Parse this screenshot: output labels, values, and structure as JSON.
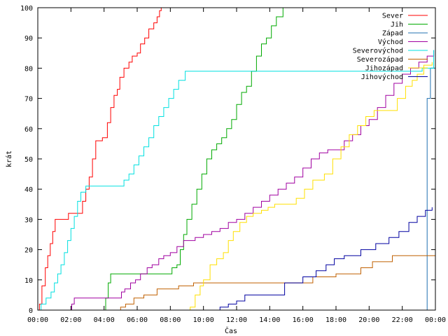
{
  "chart_data": {
    "type": "line",
    "title": "",
    "xlabel": "Čas",
    "ylabel": "krát",
    "xlim": [
      0,
      24
    ],
    "ylim": [
      0,
      100
    ],
    "x_ticks": [
      0,
      2,
      4,
      6,
      8,
      10,
      12,
      14,
      16,
      18,
      20,
      22,
      24
    ],
    "x_tick_labels": [
      "00:00",
      "02:00",
      "04:00",
      "06:00",
      "08:00",
      "10:00",
      "12:00",
      "14:00",
      "16:00",
      "18:00",
      "20:00",
      "22:00",
      "00:00"
    ],
    "y_ticks": [
      0,
      10,
      20,
      30,
      40,
      50,
      60,
      70,
      80,
      90,
      100
    ],
    "y_tick_labels": [
      "0",
      "10",
      "20",
      "30",
      "40",
      "50",
      "60",
      "70",
      "80",
      "90",
      "100"
    ],
    "grid": false,
    "legend_position": "top-right",
    "series": [
      {
        "name": "Sever",
        "color": "#ff0000",
        "points": [
          [
            0.0,
            0
          ],
          [
            0.1,
            2
          ],
          [
            0.25,
            8
          ],
          [
            0.45,
            14
          ],
          [
            0.6,
            18
          ],
          [
            0.75,
            22
          ],
          [
            0.9,
            26
          ],
          [
            1.05,
            30
          ],
          [
            1.7,
            30
          ],
          [
            1.85,
            32
          ],
          [
            2.5,
            32
          ],
          [
            2.7,
            36
          ],
          [
            2.9,
            40
          ],
          [
            3.1,
            44
          ],
          [
            3.3,
            50
          ],
          [
            3.5,
            56
          ],
          [
            3.9,
            57
          ],
          [
            4.0,
            57
          ],
          [
            4.2,
            62
          ],
          [
            4.4,
            67
          ],
          [
            4.6,
            71
          ],
          [
            4.8,
            73
          ],
          [
            4.95,
            77
          ],
          [
            5.2,
            80
          ],
          [
            5.5,
            82
          ],
          [
            5.7,
            84
          ],
          [
            6.0,
            85
          ],
          [
            6.2,
            88
          ],
          [
            6.45,
            90
          ],
          [
            6.7,
            93
          ],
          [
            7.0,
            95
          ],
          [
            7.2,
            97
          ],
          [
            7.35,
            99
          ],
          [
            7.45,
            100
          ]
        ]
      },
      {
        "name": "Jih",
        "color": "#00aa00",
        "points": [
          [
            0.0,
            0
          ],
          [
            4.0,
            0
          ],
          [
            4.1,
            4
          ],
          [
            4.25,
            9
          ],
          [
            4.4,
            12
          ],
          [
            7.9,
            12
          ],
          [
            8.1,
            14
          ],
          [
            8.4,
            15
          ],
          [
            8.6,
            20
          ],
          [
            8.8,
            25
          ],
          [
            9.0,
            30
          ],
          [
            9.3,
            35
          ],
          [
            9.6,
            40
          ],
          [
            9.9,
            45
          ],
          [
            10.2,
            50
          ],
          [
            10.5,
            53
          ],
          [
            10.8,
            55
          ],
          [
            11.1,
            57
          ],
          [
            11.4,
            60
          ],
          [
            11.7,
            63
          ],
          [
            12.0,
            68
          ],
          [
            12.3,
            72
          ],
          [
            12.6,
            74
          ],
          [
            12.9,
            79
          ],
          [
            13.2,
            84
          ],
          [
            13.5,
            88
          ],
          [
            13.8,
            90
          ],
          [
            14.1,
            94
          ],
          [
            14.4,
            97
          ],
          [
            14.8,
            100
          ]
        ]
      },
      {
        "name": "Západ",
        "color": "#2070b0",
        "points": [
          [
            0.0,
            0
          ],
          [
            23.3,
            0
          ],
          [
            23.5,
            70
          ],
          [
            23.7,
            80
          ],
          [
            24.0,
            86
          ]
        ]
      },
      {
        "name": "Východ",
        "color": "#a000a0",
        "points": [
          [
            0.0,
            0
          ],
          [
            1.95,
            0
          ],
          [
            2.05,
            2
          ],
          [
            2.2,
            4
          ],
          [
            4.9,
            4
          ],
          [
            5.05,
            6
          ],
          [
            5.25,
            7
          ],
          [
            5.6,
            9
          ],
          [
            5.9,
            10
          ],
          [
            6.2,
            12
          ],
          [
            6.6,
            14
          ],
          [
            6.9,
            15
          ],
          [
            7.3,
            17
          ],
          [
            7.6,
            18
          ],
          [
            8.0,
            19
          ],
          [
            8.4,
            21
          ],
          [
            8.8,
            23
          ],
          [
            9.5,
            24
          ],
          [
            10.0,
            25
          ],
          [
            10.5,
            26
          ],
          [
            11.0,
            27
          ],
          [
            11.5,
            29
          ],
          [
            12.0,
            30
          ],
          [
            12.5,
            32
          ],
          [
            13.0,
            34
          ],
          [
            13.5,
            36
          ],
          [
            14.0,
            38
          ],
          [
            14.5,
            40
          ],
          [
            15.0,
            42
          ],
          [
            15.5,
            44
          ],
          [
            16.0,
            47
          ],
          [
            16.5,
            50
          ],
          [
            17.0,
            52
          ],
          [
            17.5,
            53
          ],
          [
            18.0,
            53
          ],
          [
            18.5,
            56
          ],
          [
            19.0,
            58
          ],
          [
            19.5,
            61
          ],
          [
            20.0,
            63
          ],
          [
            20.5,
            67
          ],
          [
            21.0,
            71
          ],
          [
            21.5,
            75
          ],
          [
            22.0,
            78
          ],
          [
            22.5,
            80
          ],
          [
            23.0,
            82
          ],
          [
            23.5,
            84
          ],
          [
            23.9,
            86
          ]
        ]
      },
      {
        "name": "Severovýchod",
        "color": "#00e0e0",
        "points": [
          [
            0.0,
            0
          ],
          [
            0.2,
            2
          ],
          [
            0.5,
            4
          ],
          [
            0.8,
            6
          ],
          [
            1.0,
            9
          ],
          [
            1.2,
            12
          ],
          [
            1.4,
            15
          ],
          [
            1.6,
            19
          ],
          [
            1.8,
            23
          ],
          [
            2.0,
            27
          ],
          [
            2.2,
            31
          ],
          [
            2.4,
            36
          ],
          [
            2.6,
            39
          ],
          [
            2.9,
            41
          ],
          [
            5.0,
            41
          ],
          [
            5.2,
            43
          ],
          [
            5.5,
            45
          ],
          [
            5.8,
            48
          ],
          [
            6.1,
            51
          ],
          [
            6.4,
            54
          ],
          [
            6.7,
            57
          ],
          [
            7.0,
            61
          ],
          [
            7.3,
            64
          ],
          [
            7.6,
            67
          ],
          [
            7.9,
            70
          ],
          [
            8.2,
            73
          ],
          [
            8.5,
            76
          ],
          [
            8.9,
            79
          ],
          [
            22.5,
            79
          ],
          [
            23.2,
            80
          ],
          [
            23.9,
            86
          ]
        ]
      },
      {
        "name": "Severozápad",
        "color": "#c06000",
        "points": [
          [
            0.0,
            0
          ],
          [
            4.9,
            0
          ],
          [
            5.0,
            1
          ],
          [
            5.3,
            2
          ],
          [
            5.8,
            4
          ],
          [
            6.4,
            5
          ],
          [
            7.2,
            7
          ],
          [
            8.5,
            8
          ],
          [
            9.4,
            9
          ],
          [
            12.0,
            9
          ],
          [
            14.0,
            9
          ],
          [
            16.0,
            9
          ],
          [
            16.6,
            11
          ],
          [
            18.0,
            12
          ],
          [
            19.5,
            14
          ],
          [
            20.2,
            16
          ],
          [
            21.4,
            18
          ],
          [
            24.0,
            18
          ]
        ]
      },
      {
        "name": "Jihozápad",
        "color": "#ffe000",
        "points": [
          [
            0.0,
            0
          ],
          [
            9.0,
            0
          ],
          [
            9.2,
            1
          ],
          [
            9.5,
            5
          ],
          [
            9.8,
            8
          ],
          [
            10.0,
            10
          ],
          [
            10.4,
            15
          ],
          [
            10.8,
            17
          ],
          [
            11.2,
            19
          ],
          [
            11.5,
            23
          ],
          [
            11.8,
            26
          ],
          [
            12.2,
            29
          ],
          [
            12.6,
            31
          ],
          [
            13.0,
            32
          ],
          [
            13.5,
            33
          ],
          [
            13.9,
            34
          ],
          [
            14.3,
            35
          ],
          [
            15.0,
            35
          ],
          [
            15.6,
            37
          ],
          [
            16.1,
            40
          ],
          [
            16.6,
            43
          ],
          [
            17.3,
            45
          ],
          [
            17.8,
            50
          ],
          [
            18.3,
            54
          ],
          [
            18.8,
            58
          ],
          [
            19.3,
            61
          ],
          [
            19.8,
            64
          ],
          [
            20.3,
            66
          ],
          [
            21.2,
            66
          ],
          [
            21.7,
            70
          ],
          [
            22.2,
            74
          ],
          [
            22.6,
            76
          ],
          [
            22.9,
            78
          ],
          [
            23.3,
            81
          ],
          [
            23.8,
            82
          ]
        ]
      },
      {
        "name": "Jihovýchod",
        "color": "#0000a0",
        "points": [
          [
            0.0,
            0
          ],
          [
            10.9,
            0
          ],
          [
            11.0,
            1
          ],
          [
            11.5,
            2
          ],
          [
            12.0,
            3
          ],
          [
            12.5,
            5
          ],
          [
            14.5,
            5
          ],
          [
            14.9,
            9
          ],
          [
            16.0,
            11
          ],
          [
            16.8,
            13
          ],
          [
            17.4,
            15
          ],
          [
            17.9,
            17
          ],
          [
            18.5,
            18
          ],
          [
            19.5,
            20
          ],
          [
            20.4,
            22
          ],
          [
            21.2,
            24
          ],
          [
            21.8,
            26
          ],
          [
            22.4,
            29
          ],
          [
            22.9,
            31
          ],
          [
            23.4,
            33
          ],
          [
            23.8,
            34
          ]
        ]
      }
    ]
  }
}
